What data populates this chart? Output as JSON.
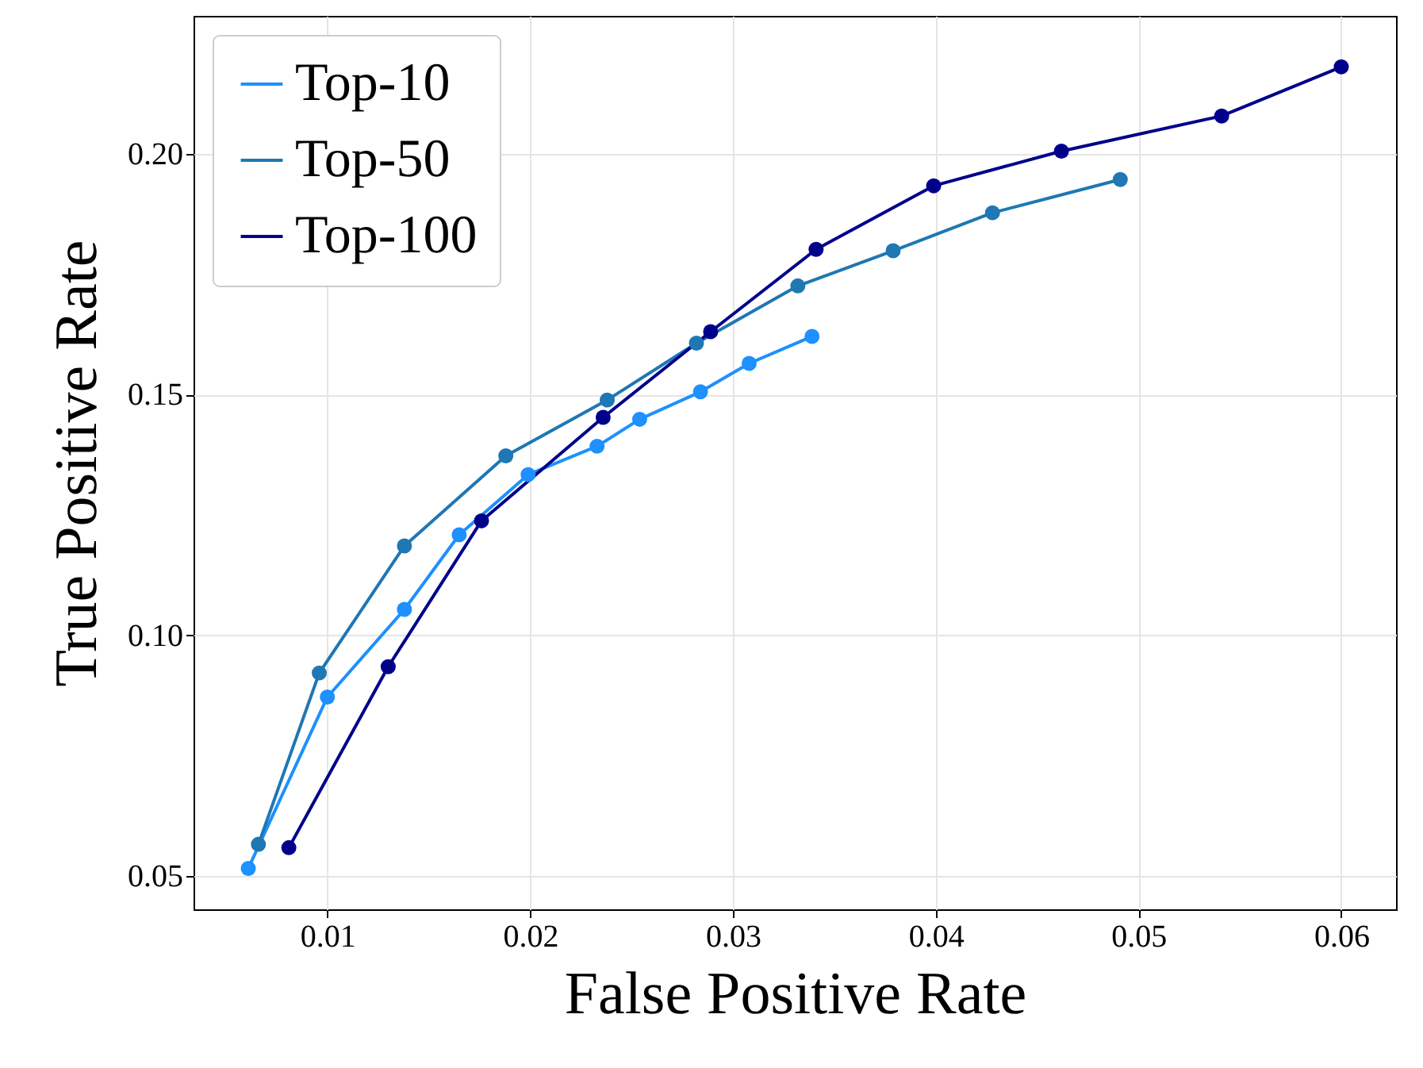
{
  "chart_data": {
    "type": "line",
    "xlabel": "False Positive Rate",
    "ylabel": "True Positive Rate",
    "xlim": [
      0.0034,
      0.0627
    ],
    "ylim": [
      0.0431,
      0.2287
    ],
    "xticks": [
      {
        "value": 0.01,
        "label": "0.01"
      },
      {
        "value": 0.02,
        "label": "0.02"
      },
      {
        "value": 0.03,
        "label": "0.03"
      },
      {
        "value": 0.04,
        "label": "0.04"
      },
      {
        "value": 0.05,
        "label": "0.05"
      },
      {
        "value": 0.06,
        "label": "0.06"
      }
    ],
    "yticks": [
      {
        "value": 0.05,
        "label": "0.05"
      },
      {
        "value": 0.1,
        "label": "0.10"
      },
      {
        "value": 0.15,
        "label": "0.15"
      },
      {
        "value": 0.2,
        "label": "0.20"
      }
    ],
    "grid": true,
    "legend": "top left",
    "marker": "circle",
    "line_style": "solid",
    "series": [
      {
        "name": "Top-10",
        "color": "#1e90ff",
        "x": [
          0.0061,
          0.01,
          0.0138,
          0.0165,
          0.0199,
          0.0233,
          0.0254,
          0.0284,
          0.0308,
          0.0339
        ],
        "values": [
          0.0516,
          0.0872,
          0.1054,
          0.1209,
          0.1334,
          0.1393,
          0.1449,
          0.1506,
          0.1565,
          0.1621
        ]
      },
      {
        "name": "Top-50",
        "color": "#1f77b4",
        "x": [
          0.0066,
          0.0096,
          0.0138,
          0.0188,
          0.0238,
          0.0282,
          0.0332,
          0.0379,
          0.0428,
          0.0491
        ],
        "values": [
          0.0566,
          0.0922,
          0.1186,
          0.1373,
          0.1489,
          0.1607,
          0.1726,
          0.1799,
          0.1878,
          0.1947
        ]
      },
      {
        "name": "Top-100",
        "color": "#00008b",
        "x": [
          0.0081,
          0.013,
          0.0176,
          0.0236,
          0.0289,
          0.0341,
          0.0399,
          0.0462,
          0.0541,
          0.06
        ],
        "values": [
          0.0559,
          0.0935,
          0.1238,
          0.1453,
          0.1631,
          0.1802,
          0.1934,
          0.2006,
          0.2079,
          0.2181
        ]
      }
    ]
  }
}
